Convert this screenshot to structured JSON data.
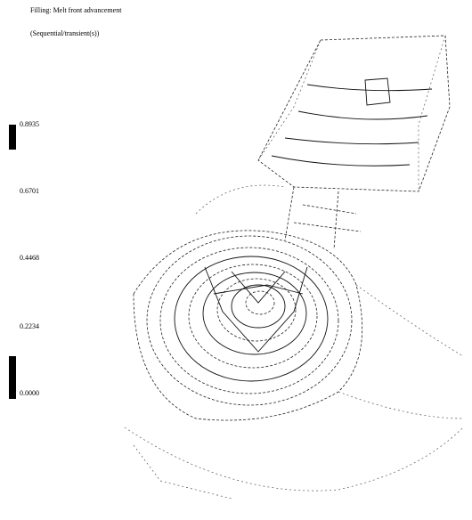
{
  "header": {
    "title": "Filling: Melt front advancement",
    "subtitle": "(Sequential/transient(s))"
  },
  "legend": {
    "labels": [
      "0.8935",
      "0.6701",
      "0.4468",
      "0.2234",
      "0.0000"
    ]
  }
}
